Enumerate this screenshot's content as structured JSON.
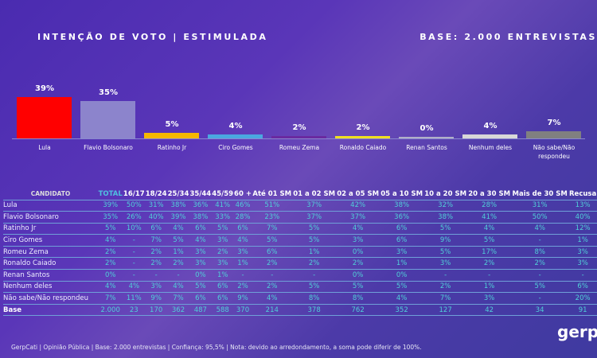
{
  "header": {
    "title": "INTENÇÃO DE VOTO | ESTIMULADA",
    "base": "BASE: 2.000 ENTREVISTAS"
  },
  "chart_data": {
    "type": "bar",
    "unit": "%",
    "ylim": [
      0,
      45
    ],
    "categories": [
      "Lula",
      "Flavio Bolsonaro",
      "Ratinho Jr",
      "Ciro Gomes",
      "Romeu Zema",
      "Ronaldo Caiado",
      "Renan Santos",
      "Nenhum deles",
      "Não sabe/Não respondeu"
    ],
    "values": [
      39,
      35,
      5,
      4,
      2,
      2,
      0,
      4,
      7
    ],
    "labels": [
      "39%",
      "35%",
      "5%",
      "4%",
      "2%",
      "2%",
      "0%",
      "4%",
      "7%"
    ],
    "colors": [
      "#ff0000",
      "#8c84cc",
      "#f5b800",
      "#4aa8e0",
      "#6a2aa0",
      "#f0e020",
      "#b0b0c8",
      "#d8d8d8",
      "#808080"
    ]
  },
  "table": {
    "headers": [
      "CANDIDATO",
      "TOTAL",
      "16/17",
      "18/24",
      "25/34",
      "35/44",
      "45/59",
      "60 +",
      "Até 01 SM",
      "01 a 02 SM",
      "02 a 05 SM",
      "05 a 10 SM",
      "10 a 20 SM",
      "20 a 30 SM",
      "Mais de 30 SM",
      "Recusa"
    ],
    "rows": [
      [
        "Lula",
        "39%",
        "50%",
        "31%",
        "38%",
        "36%",
        "41%",
        "46%",
        "51%",
        "37%",
        "42%",
        "38%",
        "32%",
        "28%",
        "31%",
        "13%"
      ],
      [
        "Flavio Bolsonaro",
        "35%",
        "26%",
        "40%",
        "39%",
        "38%",
        "33%",
        "28%",
        "23%",
        "37%",
        "37%",
        "36%",
        "38%",
        "41%",
        "50%",
        "40%"
      ],
      [
        "Ratinho Jr",
        "5%",
        "10%",
        "6%",
        "4%",
        "6%",
        "5%",
        "6%",
        "7%",
        "5%",
        "4%",
        "6%",
        "5%",
        "4%",
        "4%",
        "12%"
      ],
      [
        "Ciro Gomes",
        "4%",
        "-",
        "7%",
        "5%",
        "4%",
        "3%",
        "4%",
        "5%",
        "5%",
        "3%",
        "6%",
        "9%",
        "5%",
        "-",
        "1%"
      ],
      [
        "Romeu Zema",
        "2%",
        "-",
        "2%",
        "1%",
        "3%",
        "2%",
        "3%",
        "6%",
        "1%",
        "0%",
        "3%",
        "5%",
        "17%",
        "8%",
        "3%"
      ],
      [
        "Ronaldo Caiado",
        "2%",
        "-",
        "2%",
        "2%",
        "3%",
        "3%",
        "1%",
        "2%",
        "2%",
        "2%",
        "1%",
        "3%",
        "2%",
        "2%",
        "3%"
      ],
      [
        "Renan Santos",
        "0%",
        "-",
        "-",
        "-",
        "0%",
        "1%",
        "-",
        "-",
        "-",
        "0%",
        "0%",
        "-",
        "-",
        "-",
        "-"
      ],
      [
        "Nenhum deles",
        "4%",
        "4%",
        "3%",
        "4%",
        "5%",
        "6%",
        "2%",
        "2%",
        "5%",
        "5%",
        "5%",
        "2%",
        "1%",
        "5%",
        "6%"
      ],
      [
        "Não sabe/Não respondeu",
        "7%",
        "11%",
        "9%",
        "7%",
        "6%",
        "6%",
        "9%",
        "4%",
        "8%",
        "8%",
        "4%",
        "7%",
        "3%",
        "-",
        "20%"
      ]
    ],
    "base": [
      "Base",
      "2.000",
      "23",
      "170",
      "362",
      "487",
      "588",
      "370",
      "214",
      "378",
      "762",
      "352",
      "127",
      "42",
      "34",
      "91"
    ]
  },
  "footer": "GerpCati | Opinião Pública | Base: 2.000 entrevistas | Confiança: 95,5% | Nota: devido ao arredondamento, a soma pode diferir de 100%.",
  "logo": "gerp"
}
